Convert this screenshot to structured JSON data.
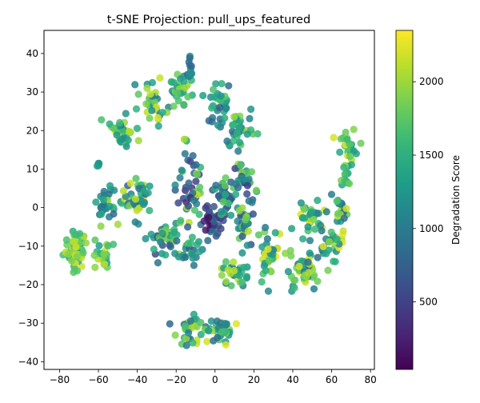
{
  "chart_data": {
    "type": "scatter",
    "title": "t-SNE Projection: pull_ups_featured",
    "xlabel": "",
    "ylabel": "",
    "xlim": [
      -88,
      82
    ],
    "ylim": [
      -42,
      46
    ],
    "xticks": [
      -80,
      -60,
      -40,
      -20,
      0,
      20,
      40,
      60,
      80
    ],
    "yticks": [
      -40,
      -30,
      -20,
      -10,
      0,
      10,
      20,
      30,
      40
    ],
    "grid": false,
    "legend": "none",
    "colormap": "viridis",
    "marker_alpha": 0.85,
    "colorbar": {
      "label": "Degradation Score",
      "range": [
        40,
        2350
      ],
      "ticks": [
        500,
        1000,
        1500,
        2000
      ]
    },
    "clusters": [
      {
        "center": [
          -72,
          -11
        ],
        "spread": [
          5,
          4
        ],
        "count": 55,
        "score": [
          1400,
          2250
        ]
      },
      {
        "center": [
          -56,
          1
        ],
        "spread": [
          5,
          4
        ],
        "count": 32,
        "score": [
          800,
          2100
        ]
      },
      {
        "center": [
          -58,
          -13
        ],
        "spread": [
          4,
          3
        ],
        "count": 22,
        "score": [
          1300,
          2200
        ]
      },
      {
        "center": [
          -60,
          11
        ],
        "spread": [
          1,
          1
        ],
        "count": 4,
        "score": [
          1100,
          1400
        ]
      },
      {
        "center": [
          -48,
          20
        ],
        "spread": [
          5,
          4
        ],
        "count": 35,
        "score": [
          900,
          2300
        ]
      },
      {
        "center": [
          -32,
          27
        ],
        "spread": [
          6,
          4
        ],
        "count": 32,
        "score": [
          1000,
          2300
        ]
      },
      {
        "center": [
          -40,
          3
        ],
        "spread": [
          6,
          5
        ],
        "count": 42,
        "score": [
          700,
          2300
        ]
      },
      {
        "center": [
          -28,
          -8
        ],
        "spread": [
          6,
          4
        ],
        "count": 42,
        "score": [
          500,
          2200
        ]
      },
      {
        "center": [
          -18,
          30
        ],
        "spread": [
          6,
          4
        ],
        "count": 32,
        "score": [
          1000,
          2200
        ]
      },
      {
        "center": [
          -14,
          5
        ],
        "spread": [
          7,
          10
        ],
        "count": 52,
        "score": [
          300,
          2200
        ]
      },
      {
        "center": [
          -13,
          -11
        ],
        "spread": [
          6,
          3
        ],
        "count": 22,
        "score": [
          700,
          1800
        ]
      },
      {
        "center": [
          -13,
          -32
        ],
        "spread": [
          6,
          3
        ],
        "count": 30,
        "score": [
          700,
          2300
        ]
      },
      {
        "center": [
          -13,
          36
        ],
        "spread": [
          1,
          4
        ],
        "count": 12,
        "score": [
          800,
          1200
        ]
      },
      {
        "center": [
          -2,
          -3
        ],
        "spread": [
          5,
          4
        ],
        "count": 45,
        "score": [
          100,
          900
        ]
      },
      {
        "center": [
          4,
          3
        ],
        "spread": [
          6,
          4
        ],
        "count": 32,
        "score": [
          400,
          1800
        ]
      },
      {
        "center": [
          2,
          26
        ],
        "spread": [
          5,
          6
        ],
        "count": 32,
        "score": [
          700,
          1800
        ]
      },
      {
        "center": [
          12,
          20
        ],
        "spread": [
          6,
          5
        ],
        "count": 35,
        "score": [
          800,
          2000
        ]
      },
      {
        "center": [
          15,
          8
        ],
        "spread": [
          5,
          4
        ],
        "count": 32,
        "score": [
          400,
          1900
        ]
      },
      {
        "center": [
          15,
          -5
        ],
        "spread": [
          5,
          4
        ],
        "count": 30,
        "score": [
          600,
          2100
        ]
      },
      {
        "center": [
          10,
          -17
        ],
        "spread": [
          6,
          3
        ],
        "count": 32,
        "score": [
          900,
          2200
        ]
      },
      {
        "center": [
          2,
          -32
        ],
        "spread": [
          7,
          3
        ],
        "count": 38,
        "score": [
          800,
          2300
        ]
      },
      {
        "center": [
          28,
          -12
        ],
        "spread": [
          6,
          5
        ],
        "count": 35,
        "score": [
          900,
          2350
        ]
      },
      {
        "center": [
          50,
          -2
        ],
        "spread": [
          6,
          3
        ],
        "count": 30,
        "score": [
          1000,
          2300
        ]
      },
      {
        "center": [
          45,
          -16
        ],
        "spread": [
          6,
          5
        ],
        "count": 48,
        "score": [
          800,
          2300
        ]
      },
      {
        "center": [
          60,
          -10
        ],
        "spread": [
          6,
          4
        ],
        "count": 32,
        "score": [
          900,
          2300
        ]
      },
      {
        "center": [
          65,
          -1
        ],
        "spread": [
          4,
          3
        ],
        "count": 20,
        "score": [
          800,
          2200
        ]
      },
      {
        "center": [
          69,
          16
        ],
        "spread": [
          4,
          4
        ],
        "count": 28,
        "score": [
          1300,
          2300
        ]
      },
      {
        "center": [
          67,
          7
        ],
        "spread": [
          2,
          3
        ],
        "count": 12,
        "score": [
          1200,
          1900
        ]
      }
    ]
  }
}
